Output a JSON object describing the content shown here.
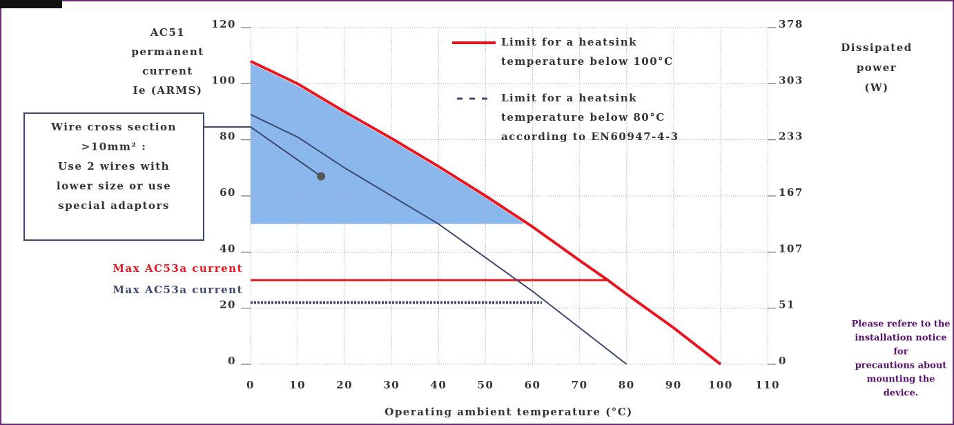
{
  "chart_data": {
    "type": "line",
    "y_axis_label": [
      "AC51",
      "permanent",
      "current",
      "Ie (ARMS)"
    ],
    "y2_axis_label": [
      "Dissipated",
      "power",
      "(W)"
    ],
    "x_axis_label": "Operating ambient temperature (°C)",
    "xlim": [
      0,
      110
    ],
    "xticks": [
      0,
      10,
      20,
      30,
      40,
      50,
      60,
      70,
      80,
      90,
      100,
      110
    ],
    "ylim": [
      0,
      120
    ],
    "yticks": [
      0,
      20,
      40,
      60,
      80,
      100,
      120
    ],
    "y2ticks": [
      0,
      51,
      107,
      167,
      233,
      303,
      378
    ],
    "grid": true,
    "series": [
      {
        "name": [
          "Limit for a heatsink",
          "temperature below 100°C"
        ],
        "color": "#e8141e",
        "style": "solid",
        "x": [
          0,
          10,
          20,
          30,
          40,
          50,
          60,
          70,
          76,
          80,
          90,
          100
        ],
        "values": [
          108,
          100,
          90,
          80.5,
          70.5,
          60,
          49,
          37,
          30,
          25,
          13,
          0
        ]
      },
      {
        "name": [
          "Limit for a heatsink",
          "temperature below 80°C",
          "according to EN60947-4-3"
        ],
        "color": "#3c4670",
        "style": "dashed",
        "x": [
          0,
          10,
          20,
          30,
          40,
          50,
          60,
          70,
          80
        ],
        "values": [
          89,
          81,
          70,
          60,
          50,
          38,
          26,
          13,
          0
        ]
      }
    ],
    "ac53a": [
      {
        "label": "Max AC53a current",
        "color": "#e8141e",
        "value": 30,
        "x_end": 76,
        "style": "solid"
      },
      {
        "label": "Max AC53a current",
        "color": "#3c4670",
        "value": 22,
        "x_end": 62,
        "style": "dotted"
      }
    ],
    "region": {
      "x": [
        0,
        58
      ],
      "y_bottom": 50,
      "color": "#8ab8ec"
    },
    "annotation": {
      "lines": [
        "Wire cross section",
        ">10mm² :",
        "Use 2 wires with",
        "lower size or use",
        "special adaptors"
      ],
      "point": [
        15,
        67
      ]
    },
    "note": [
      "Please refere to the",
      "installation notice",
      "for",
      "precautions about",
      "mounting the",
      "device."
    ]
  }
}
